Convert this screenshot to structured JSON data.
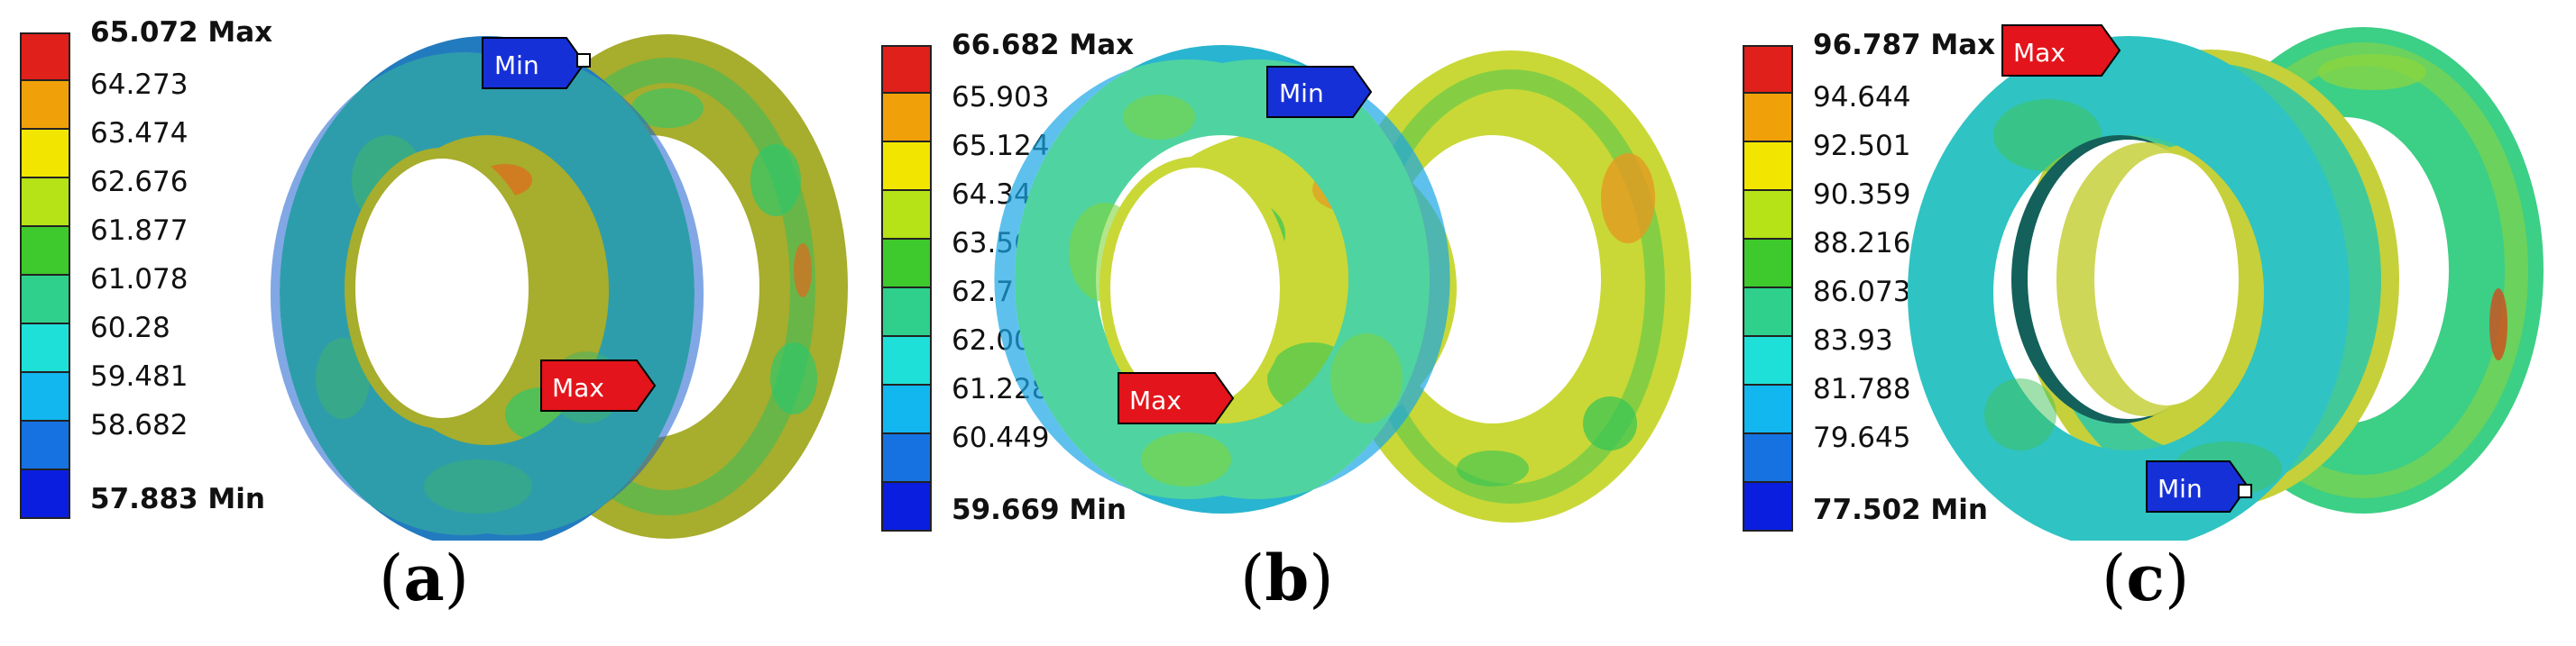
{
  "panels": [
    {
      "id": "a",
      "sublabel": "a",
      "legend": [
        "65.072 Max",
        "64.273",
        "63.474",
        "62.676",
        "61.877",
        "61.078",
        "60.28",
        "59.481",
        "58.682",
        "57.883 Min"
      ],
      "probes": {
        "max": "Max",
        "min": "Min"
      }
    },
    {
      "id": "b",
      "sublabel": "b",
      "legend": [
        "66.682 Max",
        "65.903",
        "65.124",
        "64.345",
        "63.565",
        "62.786",
        "62.007",
        "61.228",
        "60.449",
        "59.669 Min"
      ],
      "probes": {
        "max": "Max",
        "min": "Min"
      }
    },
    {
      "id": "c",
      "sublabel": "c",
      "legend": [
        "96.787 Max",
        "94.644",
        "92.501",
        "90.359",
        "88.216",
        "86.073",
        "83.93",
        "81.788",
        "79.645",
        "77.502 Min"
      ],
      "probes": {
        "max": "Max",
        "min": "Min"
      }
    }
  ],
  "colors": {
    "scale": [
      "#e0201a",
      "#f0a10a",
      "#f2e600",
      "#b6e218",
      "#3ec92c",
      "#2fd08c",
      "#1ee0d8",
      "#12b7ef",
      "#1672e0",
      "#0a1ee0"
    ],
    "probe_max": "#e3141b",
    "probe_min": "#1630d8"
  }
}
